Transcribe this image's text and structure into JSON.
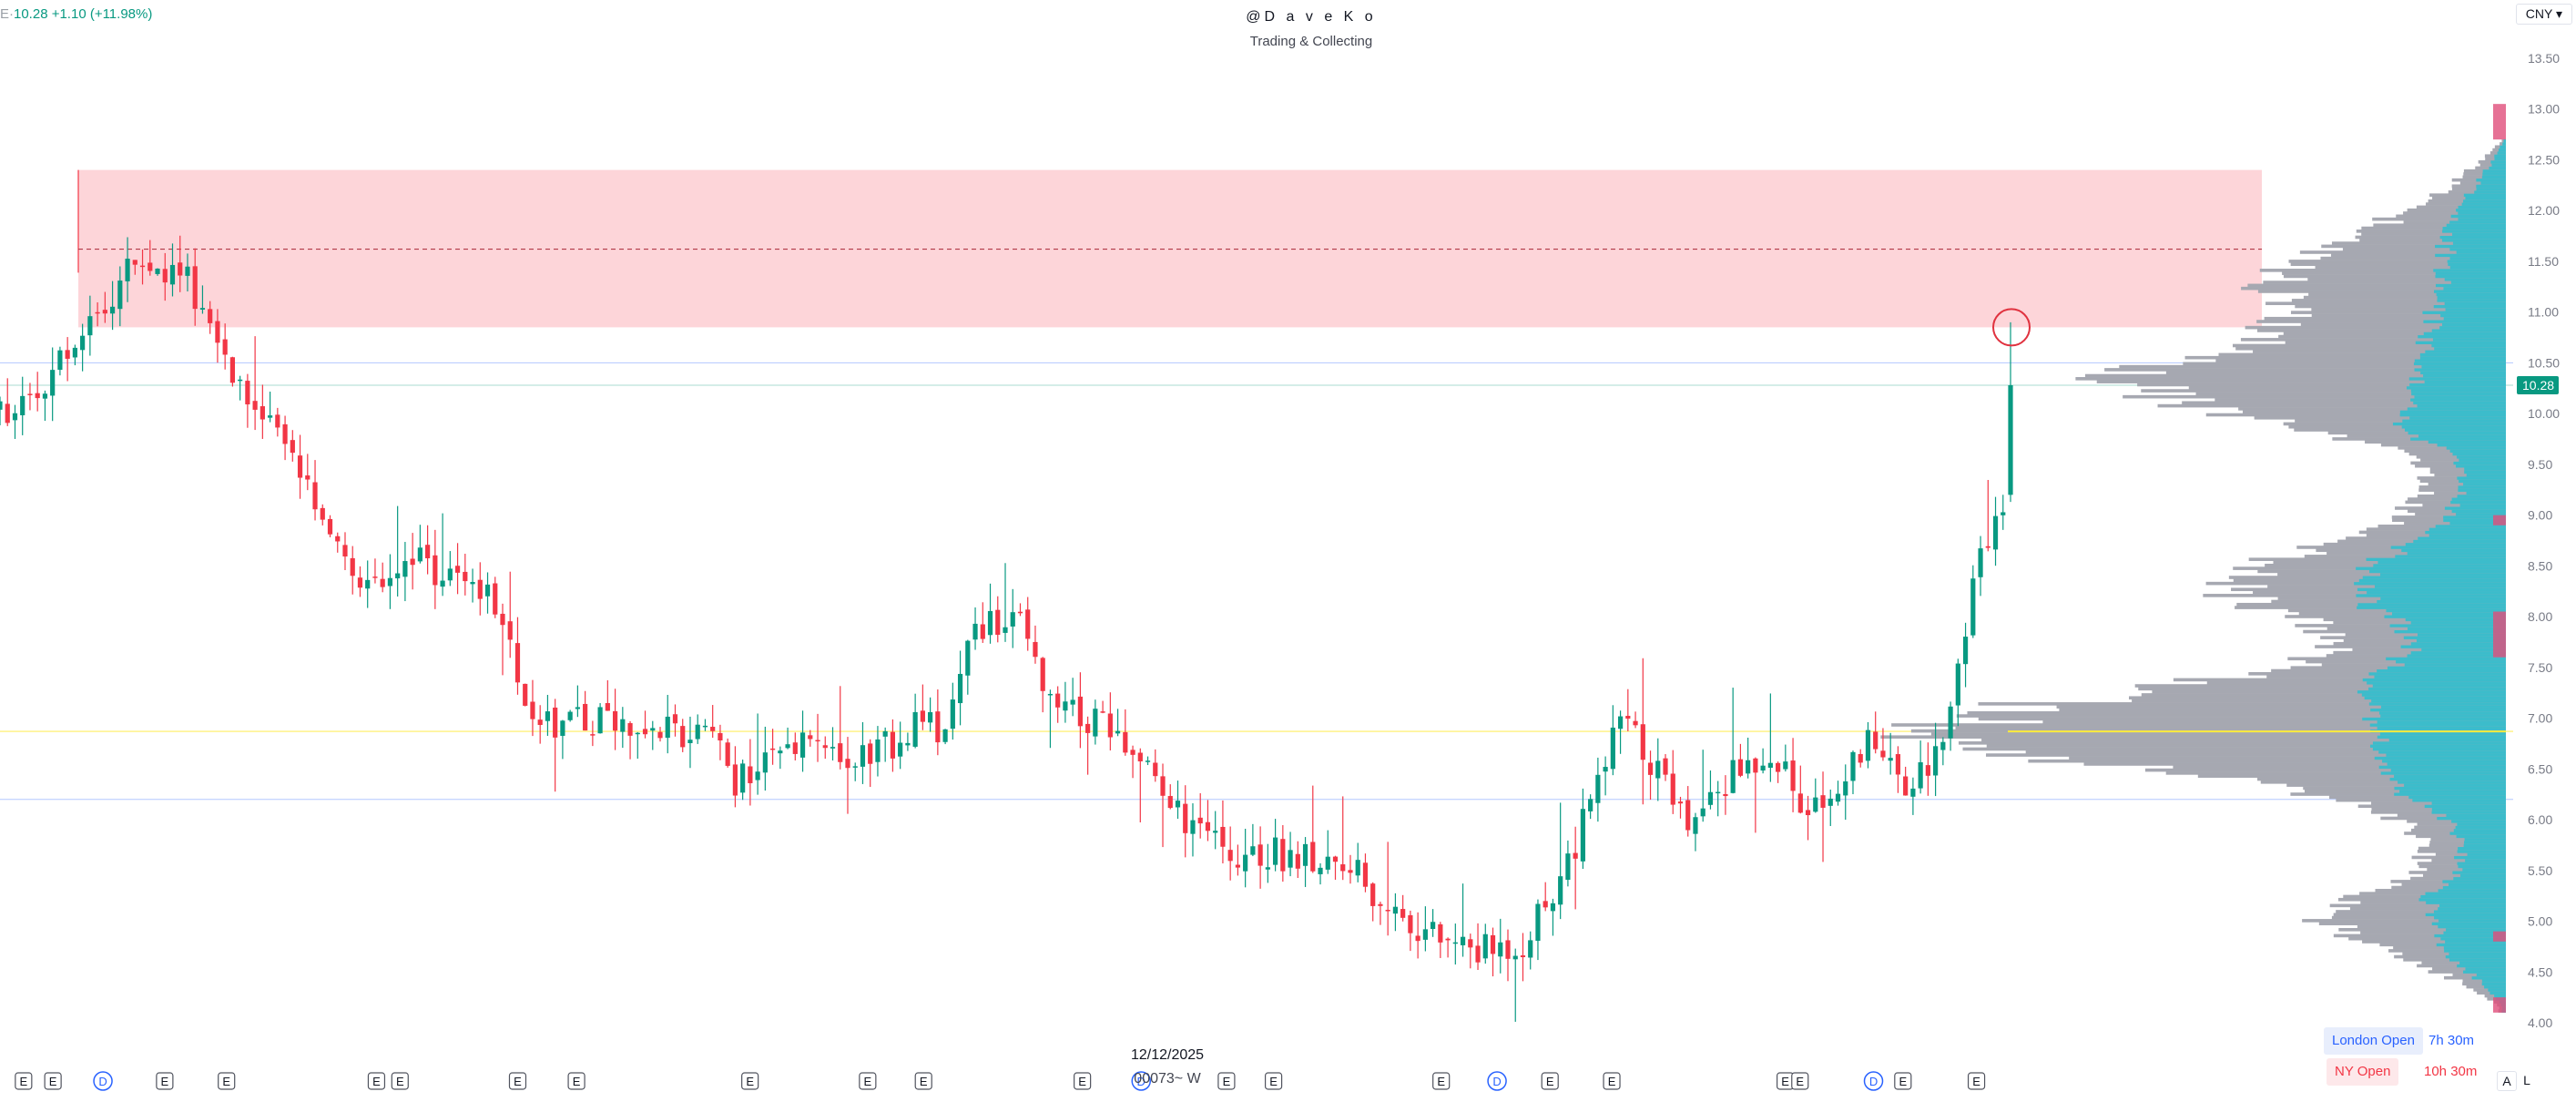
{
  "header": {
    "ohlc_prefix": "E·",
    "ohlc_text": "10.28 +1.10 (+11.98%)",
    "handle": "@D a v e K o",
    "tagline": "Trading & Collecting",
    "currency": "CNY ▾"
  },
  "time_info": {
    "date": "12/12/2025",
    "code": "00073~ W"
  },
  "sessions": [
    {
      "name": "London Open",
      "countdown": "7h 30m"
    },
    {
      "name": "NY Open",
      "countdown": "10h 30m"
    }
  ],
  "corner_buttons": {
    "auto": "A",
    "log": "L"
  },
  "colors": {
    "up": "#089981",
    "down": "#f23645",
    "zone": "#fdd5d9",
    "profile": "#a6a8b1",
    "profile_value": "#3cbccb",
    "poc": "#ffeb3b",
    "level": "#2962ff",
    "event": "#2962ff"
  },
  "chart_data": {
    "type": "candlestick",
    "ylim": [
      3.9,
      13.7
    ],
    "y_ticks": [
      "4.00",
      "4.50",
      "5.00",
      "5.50",
      "6.00",
      "6.50",
      "7.00",
      "7.50",
      "8.00",
      "8.50",
      "9.00",
      "9.50",
      "10.00",
      "10.50",
      "11.00",
      "11.50",
      "12.00",
      "12.50",
      "13.00",
      "13.50"
    ],
    "last_price": "10.28",
    "horizontal_lines": [
      10.5,
      6.2
    ],
    "poc_level": 6.87,
    "resistance_zone": {
      "low": 10.85,
      "high": 12.4,
      "mid": 11.62
    },
    "highlight_price": 10.85,
    "waypoints": [
      [
        0,
        10.0
      ],
      [
        10,
        10.6
      ],
      [
        18,
        11.5
      ],
      [
        25,
        11.3
      ],
      [
        30,
        10.6
      ],
      [
        35,
        9.9
      ],
      [
        40,
        9.5
      ],
      [
        45,
        8.7
      ],
      [
        50,
        8.3
      ],
      [
        55,
        8.6
      ],
      [
        60,
        8.4
      ],
      [
        65,
        8.2
      ],
      [
        70,
        7.2
      ],
      [
        75,
        6.9
      ],
      [
        80,
        7.0
      ],
      [
        90,
        6.9
      ],
      [
        95,
        6.8
      ],
      [
        98,
        6.4
      ],
      [
        102,
        6.6
      ],
      [
        108,
        6.9
      ],
      [
        112,
        6.5
      ],
      [
        118,
        6.7
      ],
      [
        122,
        7.0
      ],
      [
        126,
        6.8
      ],
      [
        130,
        7.9
      ],
      [
        136,
        7.9
      ],
      [
        140,
        7.1
      ],
      [
        147,
        6.9
      ],
      [
        152,
        6.5
      ],
      [
        158,
        6.0
      ],
      [
        163,
        5.7
      ],
      [
        168,
        5.7
      ],
      [
        175,
        5.6
      ],
      [
        180,
        5.5
      ],
      [
        186,
        5.1
      ],
      [
        192,
        4.8
      ],
      [
        198,
        4.7
      ],
      [
        203,
        4.8
      ],
      [
        207,
        5.3
      ],
      [
        212,
        6.1
      ],
      [
        216,
        7.0
      ],
      [
        220,
        6.6
      ],
      [
        225,
        6.0
      ],
      [
        230,
        6.4
      ],
      [
        236,
        6.7
      ],
      [
        241,
        6.0
      ],
      [
        246,
        6.5
      ],
      [
        250,
        6.8
      ],
      [
        254,
        6.3
      ],
      [
        258,
        6.6
      ],
      [
        261,
        7.6
      ],
      [
        264,
        8.6
      ],
      [
        267,
        9.2
      ],
      [
        268,
        10.28
      ]
    ],
    "candle_count": 269,
    "events": [
      {
        "label": "E",
        "x": 8
      },
      {
        "label": "E",
        "x": 18
      },
      {
        "label": "D",
        "x": 35
      },
      {
        "label": "E",
        "x": 56
      },
      {
        "label": "E",
        "x": 77
      },
      {
        "label": "E",
        "x": 128
      },
      {
        "label": "E",
        "x": 136
      },
      {
        "label": "E",
        "x": 176
      },
      {
        "label": "E",
        "x": 196
      },
      {
        "label": "E",
        "x": 255
      },
      {
        "label": "E",
        "x": 295
      },
      {
        "label": "E",
        "x": 314
      },
      {
        "label": "E",
        "x": 368
      },
      {
        "label": "D",
        "x": 388
      },
      {
        "label": "E",
        "x": 417
      },
      {
        "label": "E",
        "x": 433
      },
      {
        "label": "E",
        "x": 490
      },
      {
        "label": "D",
        "x": 509
      },
      {
        "label": "E",
        "x": 527
      },
      {
        "label": "E",
        "x": 548
      },
      {
        "label": "E",
        "x": 607
      },
      {
        "label": "E",
        "x": 612
      },
      {
        "label": "D",
        "x": 637
      },
      {
        "label": "E",
        "x": 647
      },
      {
        "label": "E",
        "x": 672
      }
    ]
  }
}
